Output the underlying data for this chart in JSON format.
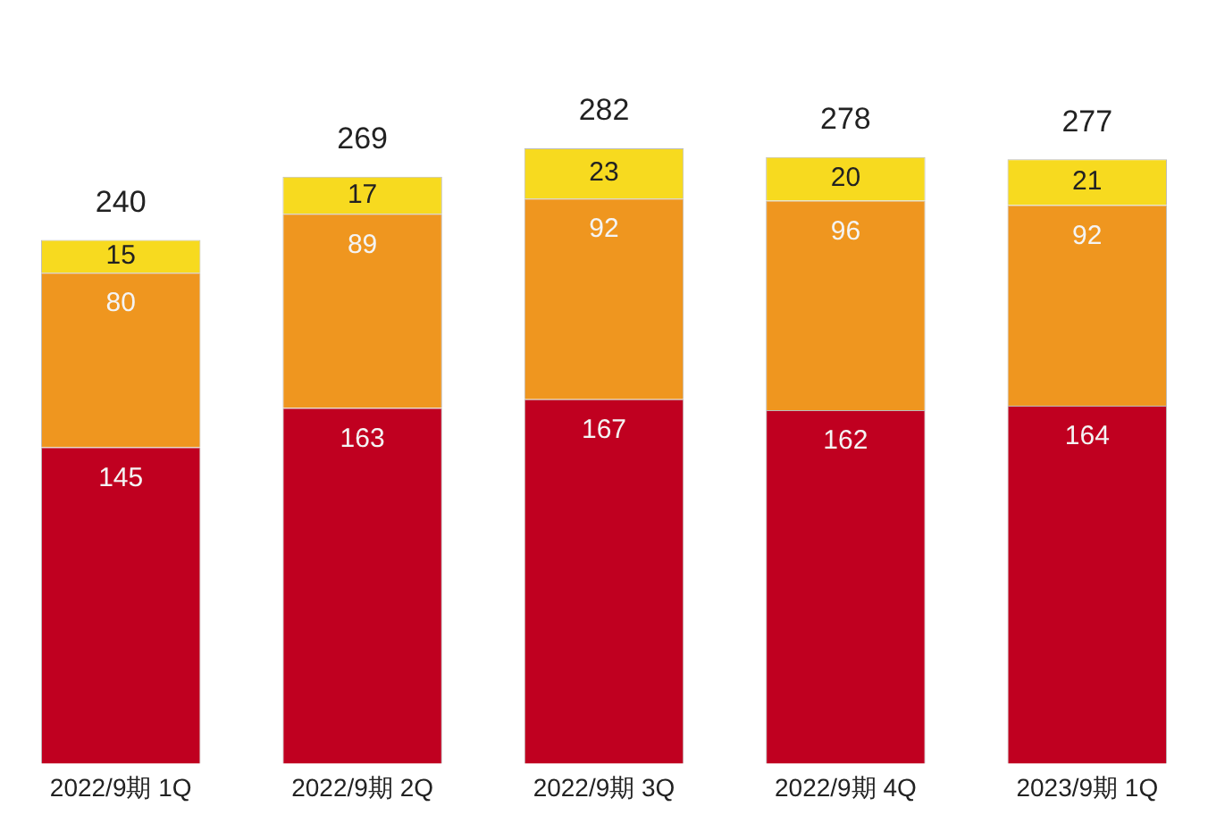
{
  "chart_data": {
    "type": "bar",
    "stacked": true,
    "data_labels": true,
    "legend": false,
    "grid": false,
    "tick_labels": "x",
    "categories": [
      "2022/9期 1Q",
      "2022/9期 2Q",
      "2022/9期 3Q",
      "2022/9期 4Q",
      "2023/9期 1Q"
    ],
    "series": [
      {
        "color": "#c00020",
        "values": [
          145,
          163,
          167,
          162,
          164
        ]
      },
      {
        "color": "#ef961f",
        "values": [
          80,
          89,
          92,
          96,
          92
        ]
      },
      {
        "color": "#f7da1f",
        "values": [
          15,
          17,
          23,
          20,
          21
        ]
      }
    ],
    "totals": [
      "240",
      "269",
      "282",
      "278",
      "277"
    ]
  }
}
